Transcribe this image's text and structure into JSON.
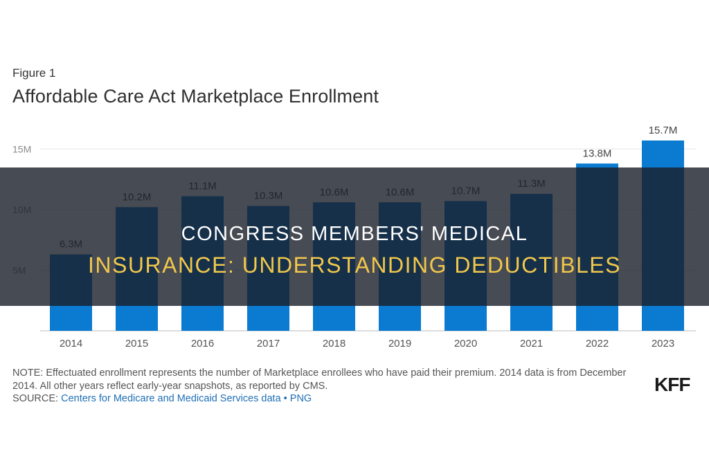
{
  "figure_label": "Figure 1",
  "overlay": {
    "line1": "Congress Members' Medical",
    "line2": "Insurance: Understanding Deductibles"
  },
  "note": "NOTE: Effectuated enrollment represents the number of Marketplace enrollees who have paid their premium. 2014 data is from December 2014. All other years reflect early-year snapshots, as reported by CMS.",
  "source": {
    "prefix": "SOURCE: ",
    "link1": "Centers for Medicare and Medicaid Services data",
    "separator": " • ",
    "link2": "PNG"
  },
  "logo": "KFF",
  "colors": {
    "bar": "#0b7bd1",
    "overlay": "#191e28",
    "highlight": "#f2c84b"
  },
  "chart_data": {
    "type": "bar",
    "title": "Affordable Care Act Marketplace Enrollment",
    "categories": [
      "2014",
      "2015",
      "2016",
      "2017",
      "2018",
      "2019",
      "2020",
      "2021",
      "2022",
      "2023"
    ],
    "values": [
      6.3,
      10.2,
      11.1,
      10.3,
      10.6,
      10.6,
      10.7,
      11.3,
      13.8,
      15.7
    ],
    "data_labels": [
      "6.3M",
      "10.2M",
      "11.1M",
      "10.3M",
      "10.6M",
      "10.6M",
      "10.7M",
      "11.3M",
      "13.8M",
      "15.7M"
    ],
    "y_ticks": [
      {
        "value": 5,
        "label": "5M"
      },
      {
        "value": 10,
        "label": "10M"
      },
      {
        "value": 15,
        "label": "15M"
      }
    ],
    "ylim": [
      0,
      15.7
    ],
    "grid": true
  }
}
